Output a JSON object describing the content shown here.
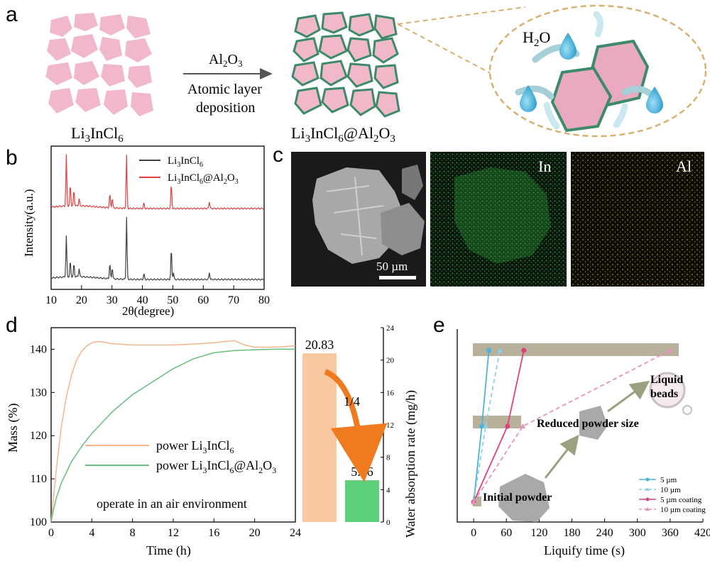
{
  "panels": {
    "a": {
      "label": "a",
      "arrow_top_base": "Al",
      "arrow_top_sub": "2",
      "arrow_top_tail": "O",
      "arrow_top_sub2": "3",
      "arrow_line2": "Atomic layer",
      "arrow_line3": "deposition",
      "left_label_parts": [
        "Li",
        "3",
        "InCl",
        "6"
      ],
      "right_label_parts": [
        "Li",
        "3",
        "InCl",
        "6",
        "@Al",
        "2",
        "O",
        "3"
      ],
      "water_label_base": "H",
      "water_label_sub": "2",
      "water_label_tail": "O"
    },
    "b": {
      "label": "b"
    },
    "c": {
      "label": "c",
      "scale_bar": "50 µm",
      "map1_label": "In",
      "map2_label": "Al"
    },
    "d": {
      "label": "d"
    },
    "e": {
      "label": "e"
    }
  },
  "colors": {
    "pink": "#f0b8c9",
    "green_edge": "#3d8a6b",
    "xrd_black": "#404040",
    "xrd_red": "#e04040",
    "mass_orange": "#f5b58a",
    "mass_green": "#67bf7f",
    "bar_orange": "#f8c8a0",
    "bar_green": "#5fd07a",
    "arrow_orange": "#f07a20",
    "band": "#b8b09a",
    "blue": "#4fb2dc",
    "light_blue": "#8fcfe8",
    "magenta": "#e0407a",
    "light_pink": "#e893b8",
    "text_maroon": "#8a5060",
    "in_map": "#2fa040",
    "al_map": "#c8b83a"
  },
  "chart_data": [
    {
      "id": "b",
      "type": "line",
      "xlabel": "2θ(degree)",
      "ylabel": "Intensity(a.u.)",
      "xlim": [
        10,
        80
      ],
      "xticks": [
        10,
        20,
        30,
        40,
        50,
        60,
        70,
        80
      ],
      "legend": "top-center",
      "series": [
        {
          "name": "Li3InCl6",
          "name_parts": [
            "Li",
            "3",
            "InCl",
            "6"
          ],
          "color": "#404040",
          "offset": 0,
          "peaks": [
            [
              15.0,
              58
            ],
            [
              16.3,
              22
            ],
            [
              17.5,
              18
            ],
            [
              19.2,
              12
            ],
            [
              29.3,
              22
            ],
            [
              30.1,
              16
            ],
            [
              34.8,
              88
            ],
            [
              40.5,
              8
            ],
            [
              49.5,
              44
            ],
            [
              50.2,
              10
            ],
            [
              62,
              10
            ]
          ]
        },
        {
          "name": "Li3InCl6@Al2O3",
          "name_parts": [
            "Li",
            "3",
            "InCl",
            "6",
            "@Al",
            "2",
            "O",
            "3"
          ],
          "color": "#e04040",
          "offset": 100,
          "peaks": [
            [
              15.0,
              72
            ],
            [
              16.3,
              30
            ],
            [
              17.5,
              22
            ],
            [
              19.2,
              10
            ],
            [
              29.3,
              20
            ],
            [
              30.1,
              14
            ],
            [
              34.8,
              75
            ],
            [
              40.5,
              8
            ],
            [
              49.5,
              36
            ],
            [
              62,
              10
            ]
          ]
        }
      ]
    },
    {
      "id": "d",
      "type": "line",
      "xlabel": "Time (h)",
      "ylabel": "Mass (%)",
      "xlim": [
        0,
        24
      ],
      "ylim": [
        100,
        145
      ],
      "xticks": [
        0,
        4,
        8,
        12,
        16,
        20,
        24
      ],
      "yticks": [
        100,
        110,
        120,
        130,
        140
      ],
      "annotation": "operate in an air environment",
      "series": [
        {
          "name": "power Li3InCl6",
          "legend_parts": [
            "power Li",
            "3",
            "InCl",
            "6"
          ],
          "color": "#f5b58a",
          "x": [
            0,
            0.5,
            1,
            1.5,
            2,
            2.5,
            3,
            3.5,
            4,
            4.5,
            5,
            6,
            8,
            10,
            12,
            14,
            16,
            17,
            18,
            18.5,
            19,
            20,
            22,
            24
          ],
          "y": [
            100,
            112,
            122,
            129,
            134,
            137.5,
            139.5,
            140.8,
            141.5,
            141.8,
            141.7,
            141.3,
            141.0,
            141.0,
            141.0,
            141.2,
            141.5,
            141.8,
            142.0,
            141.5,
            141.0,
            140.5,
            140.5,
            140.8
          ]
        },
        {
          "name": "power Li3InCl6@Al2O3",
          "legend_parts": [
            "power Li",
            "3",
            "InCl",
            "6",
            "@Al",
            "2",
            "O",
            "3"
          ],
          "color": "#67bf7f",
          "x": [
            0,
            0.25,
            0.5,
            1,
            2,
            3,
            4,
            5,
            6,
            8,
            10,
            12,
            14,
            16,
            18,
            20,
            22,
            24
          ],
          "y": [
            100,
            103,
            105.5,
            109,
            114,
            117.5,
            120.5,
            123,
            125.5,
            129.5,
            132.5,
            135.5,
            137.8,
            139.2,
            139.7,
            139.9,
            140.0,
            140.0
          ]
        }
      ]
    },
    {
      "id": "d-bars",
      "type": "bar",
      "ylabel": "Water absorption rate (mg/h)",
      "ylim": [
        0,
        24
      ],
      "yticks": [
        0,
        4,
        8,
        12,
        16,
        20,
        24
      ],
      "categories": [
        "Li3InCl6",
        "Li3InCl6@Al2O3"
      ],
      "values": [
        20.83,
        5.16
      ],
      "value_labels": [
        "20.83",
        "5.16"
      ],
      "ratio_label": "1/4"
    },
    {
      "id": "e",
      "type": "line",
      "xlabel": "Liquify time (s)",
      "xlim": [
        -30,
        420
      ],
      "xticks": [
        0,
        60,
        120,
        180,
        240,
        300,
        360,
        420
      ],
      "stages": [
        "Initial powder",
        "Reduced powder size",
        "Liquid beads"
      ],
      "legend": "bottom-right",
      "series": [
        {
          "name": "5 µm",
          "color": "#4fb2dc",
          "dashed": false,
          "marker": "circle",
          "points": [
            [
              0,
              0
            ],
            [
              15,
              1
            ],
            [
              28,
              2
            ]
          ]
        },
        {
          "name": "10 µm",
          "color": "#8fcfe8",
          "dashed": true,
          "marker": "triangle",
          "points": [
            [
              0,
              0
            ],
            [
              22,
              1
            ],
            [
              48,
              2
            ]
          ]
        },
        {
          "name": "5 µm coating",
          "color": "#e0407a",
          "dashed": false,
          "marker": "circle",
          "points": [
            [
              0,
              0
            ],
            [
              62,
              1
            ],
            [
              92,
              2
            ]
          ]
        },
        {
          "name": "10 µm coating",
          "color": "#e893b8",
          "dashed": true,
          "marker": "triangle",
          "points": [
            [
              0,
              0
            ],
            [
              90,
              1
            ],
            [
              360,
              2
            ]
          ]
        }
      ]
    }
  ]
}
